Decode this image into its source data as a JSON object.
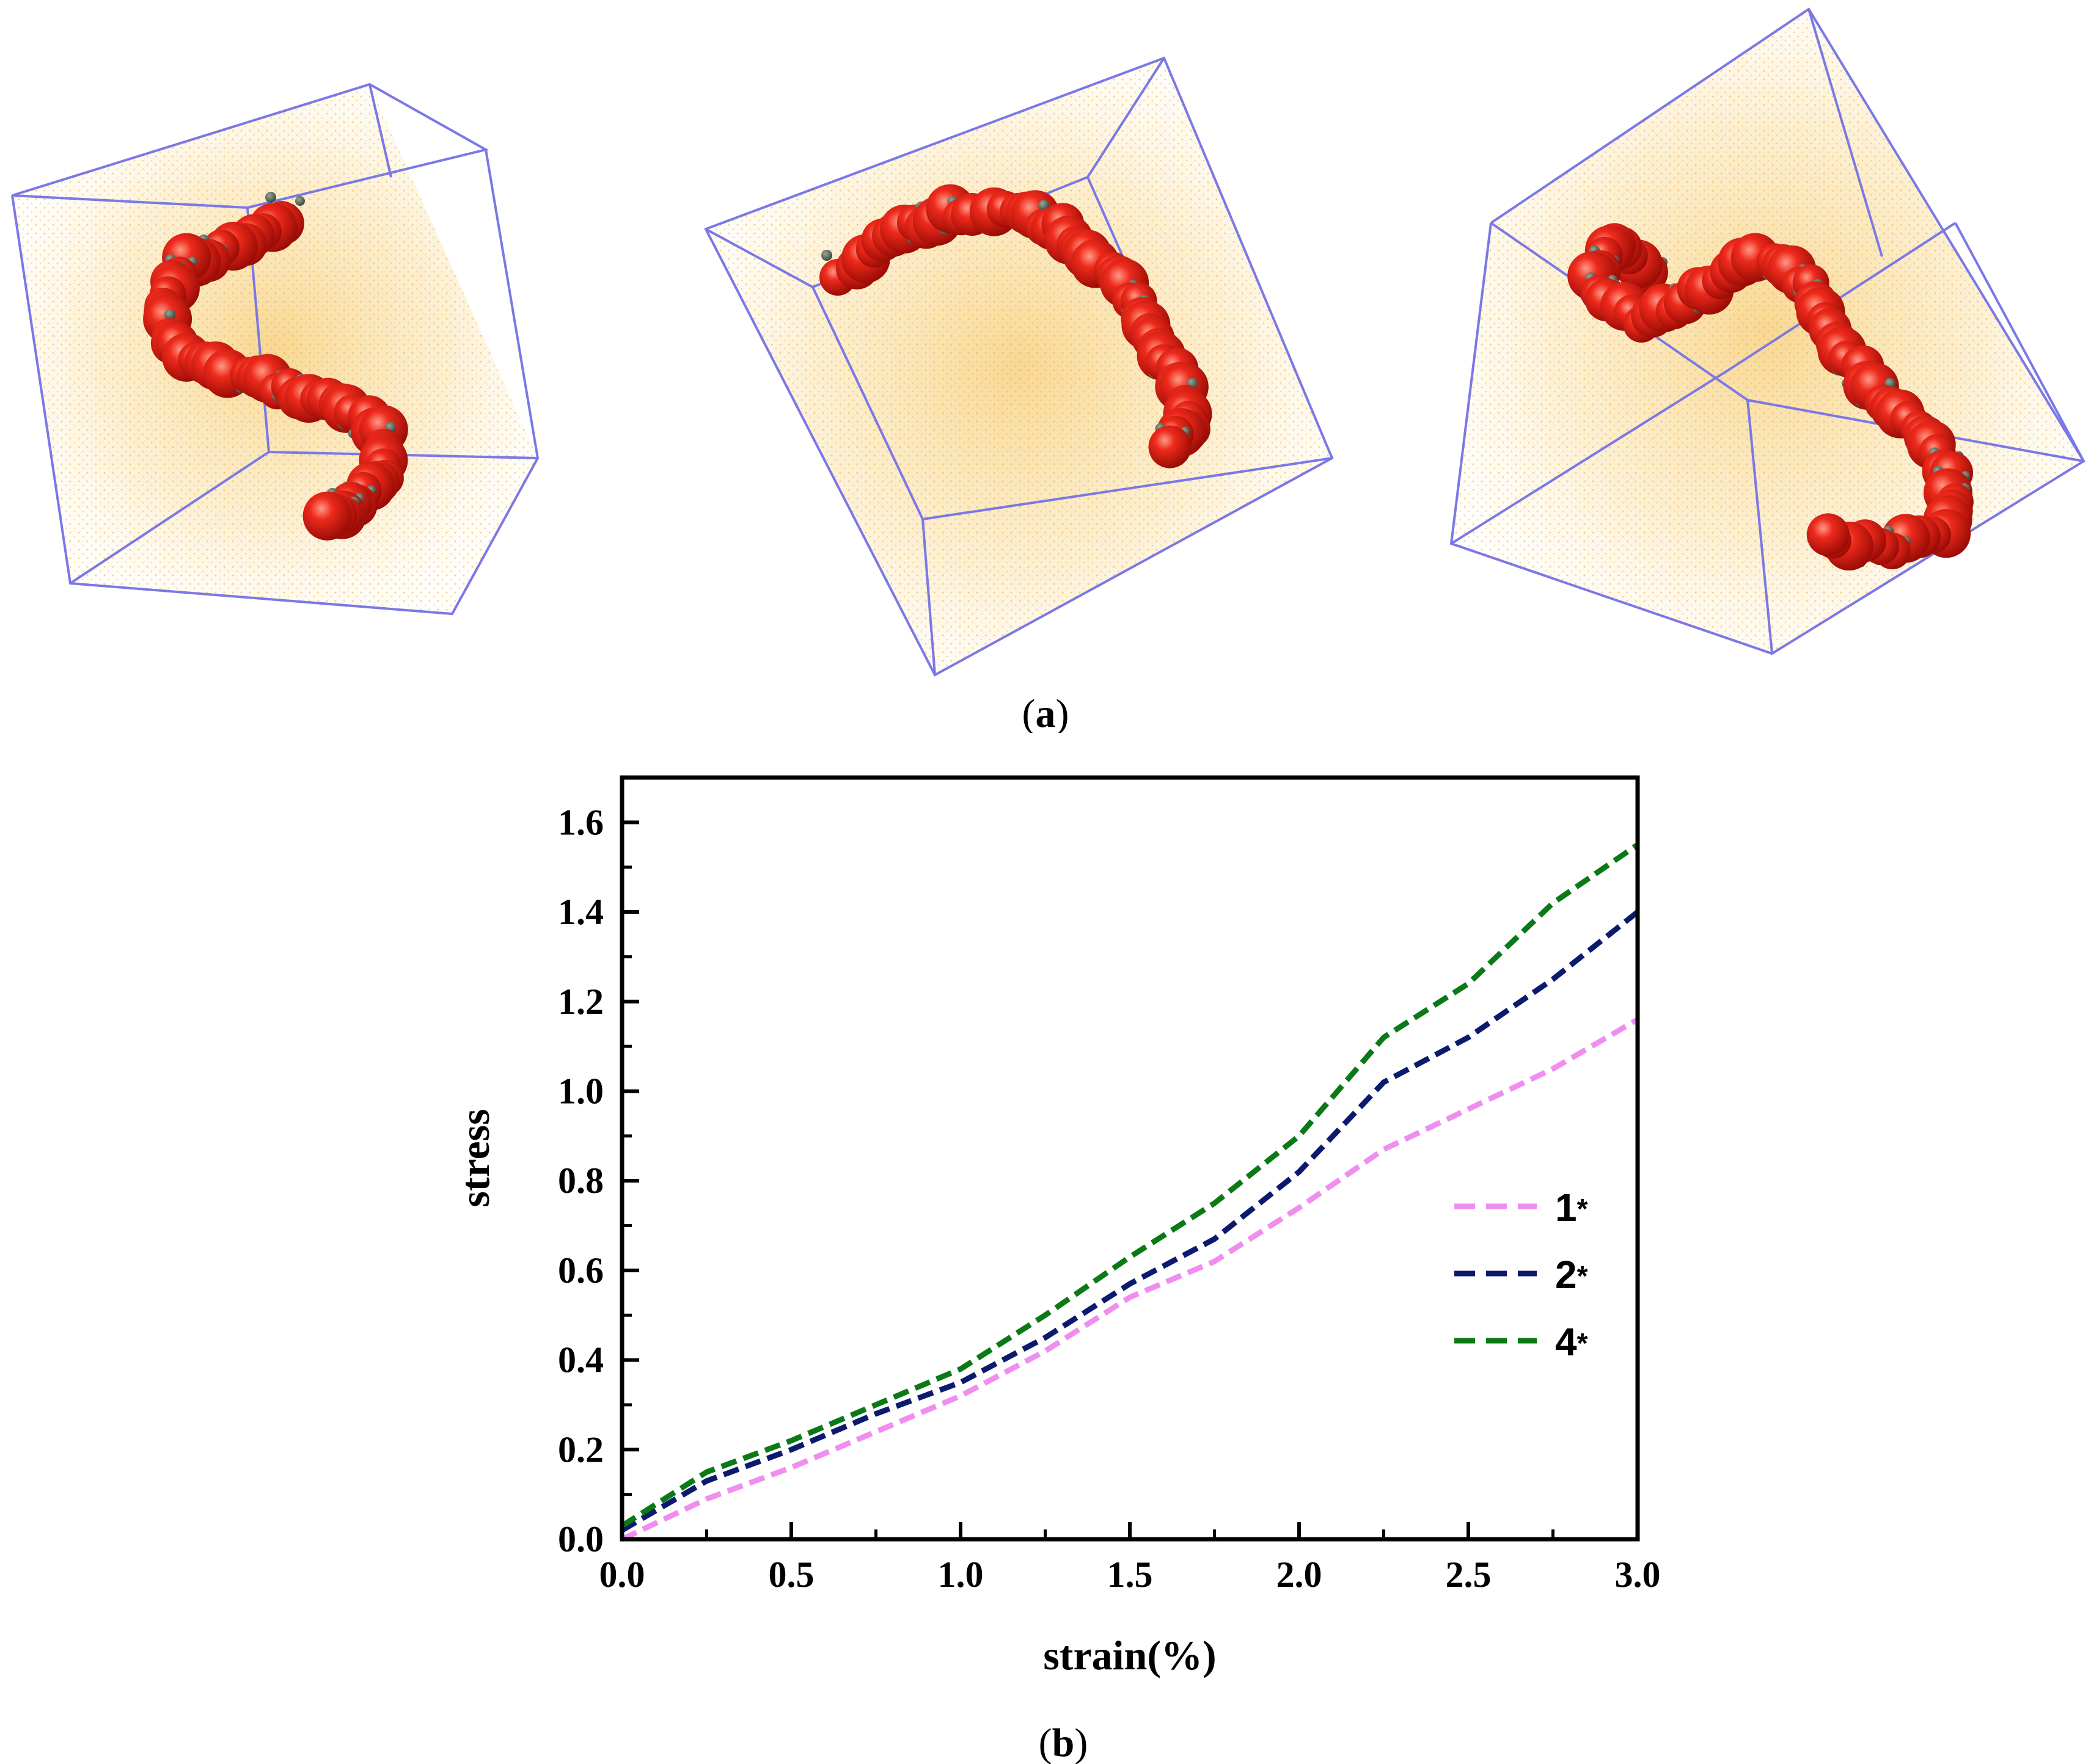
{
  "panel_a": {
    "caption_open": "(",
    "caption_letter": "a",
    "caption_close": ")",
    "colors": {
      "box_edge": "#7b78e6",
      "matrix_particles": "#f2b73a",
      "large_beads": "#e8241a",
      "small_beads": "#5e6a5c"
    },
    "images": [
      {
        "name": "simulation-box-1"
      },
      {
        "name": "simulation-box-2"
      },
      {
        "name": "simulation-box-3"
      }
    ]
  },
  "chart_data": {
    "type": "line",
    "caption_open": "(",
    "caption_letter": "b",
    "caption_close": ")",
    "xlabel": "strain(%)",
    "ylabel": "stress",
    "xlim": [
      0.0,
      3.0
    ],
    "ylim": [
      0.0,
      1.7
    ],
    "x_ticks": [
      "0.0",
      "0.5",
      "1.0",
      "1.5",
      "2.0",
      "2.5",
      "3.0"
    ],
    "y_ticks": [
      "0.0",
      "0.2",
      "0.4",
      "0.6",
      "0.8",
      "1.0",
      "1.2",
      "1.4",
      "1.6"
    ],
    "legend_position": "right",
    "series": [
      {
        "name": "1*",
        "legend_number": "1",
        "legend_star": "*",
        "color": "#f08ef0",
        "x": [
          0.0,
          0.25,
          0.5,
          0.75,
          1.0,
          1.25,
          1.5,
          1.75,
          2.0,
          2.25,
          2.5,
          2.75,
          3.0
        ],
        "y": [
          0.0,
          0.09,
          0.16,
          0.24,
          0.32,
          0.42,
          0.54,
          0.62,
          0.74,
          0.87,
          0.96,
          1.05,
          1.16
        ]
      },
      {
        "name": "2*",
        "legend_number": "2",
        "legend_star": "*",
        "color": "#0c1a6e",
        "x": [
          0.0,
          0.25,
          0.5,
          0.75,
          1.0,
          1.25,
          1.5,
          1.75,
          2.0,
          2.25,
          2.5,
          2.75,
          3.0
        ],
        "y": [
          0.02,
          0.13,
          0.2,
          0.28,
          0.35,
          0.45,
          0.57,
          0.67,
          0.82,
          1.02,
          1.12,
          1.25,
          1.4
        ]
      },
      {
        "name": "4*",
        "legend_number": "4",
        "legend_star": "*",
        "color": "#0b7a16",
        "x": [
          0.0,
          0.25,
          0.5,
          0.75,
          1.0,
          1.25,
          1.5,
          1.75,
          2.0,
          2.25,
          2.5,
          2.75,
          3.0
        ],
        "y": [
          0.03,
          0.15,
          0.22,
          0.3,
          0.38,
          0.5,
          0.63,
          0.75,
          0.9,
          1.12,
          1.24,
          1.42,
          1.55
        ]
      }
    ]
  }
}
